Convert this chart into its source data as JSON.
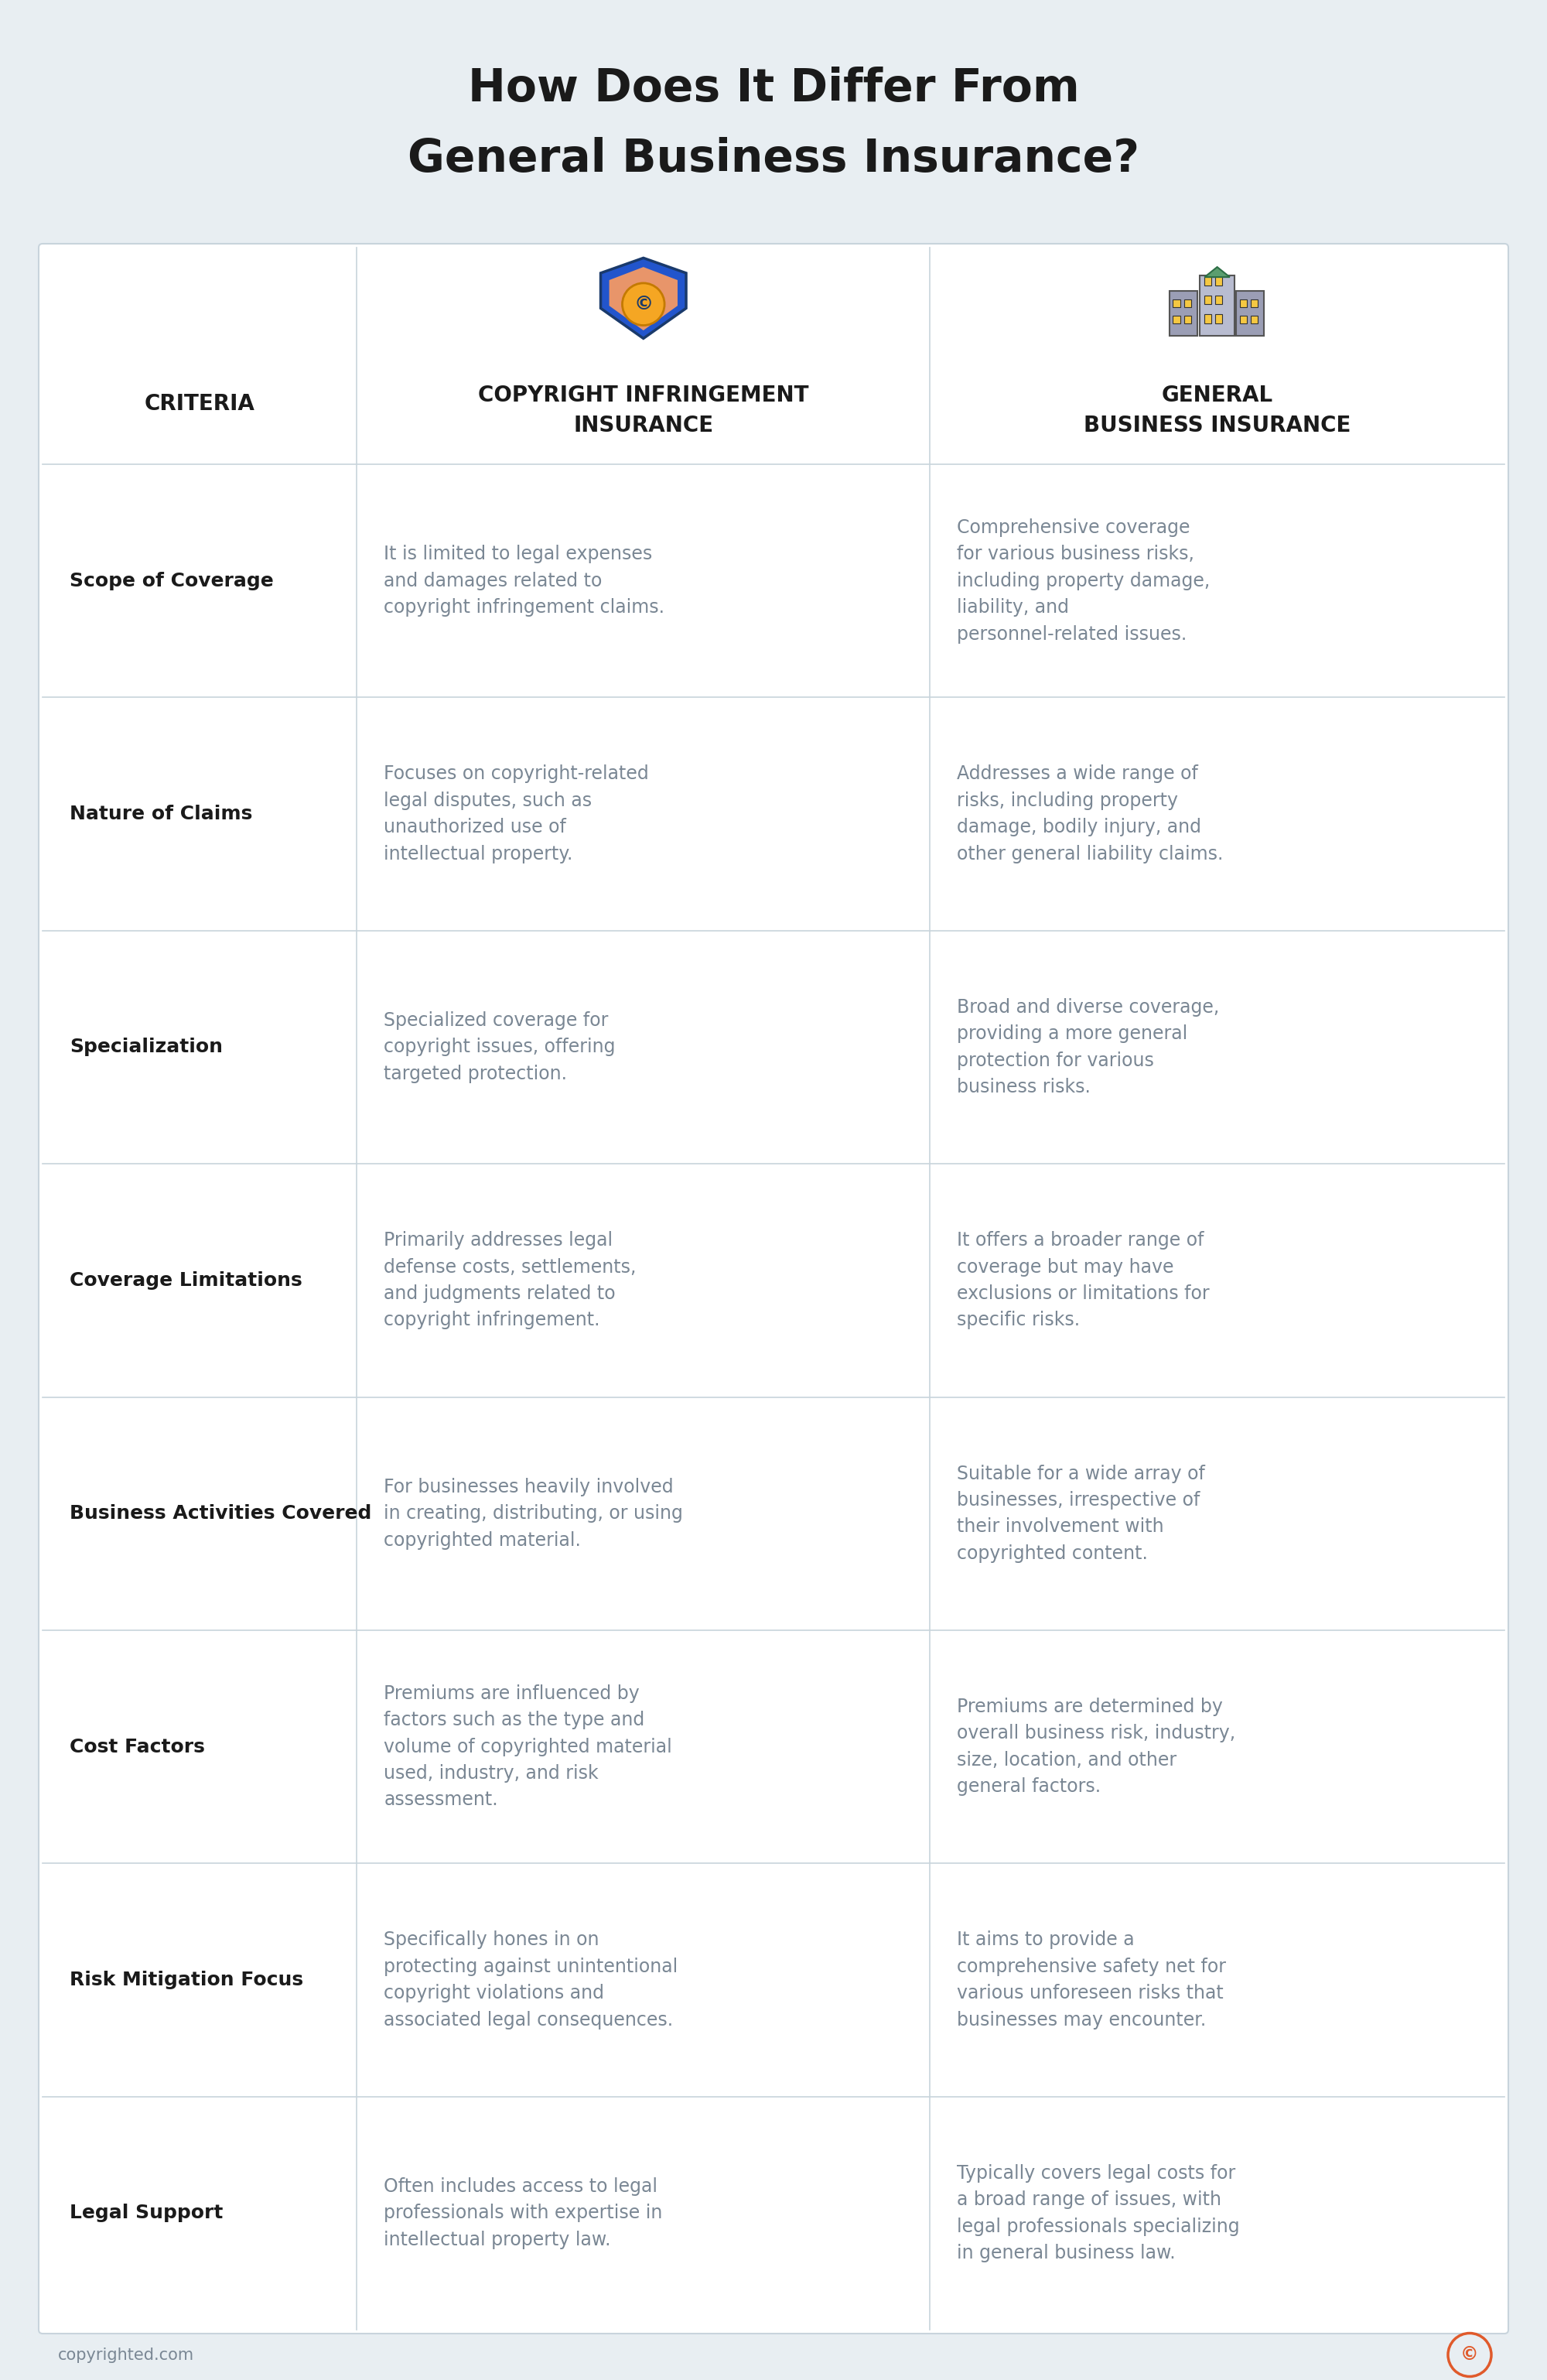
{
  "title_line1": "How Does It Differ From",
  "title_line2": "General Business Insurance?",
  "bg_color": "#e8eef2",
  "table_bg": "#ffffff",
  "border_color": "#c8d4dc",
  "criteria_header": "CRITERIA",
  "col1_header": "COPYRIGHT INFRINGEMENT\nINSURANCE",
  "col2_header": "GENERAL\nBUSINESS INSURANCE",
  "header_label_color": "#1a1a1a",
  "criteria_label_color": "#1a1a1a",
  "body_text_color": "#7a8794",
  "footer_text": "copyrighted.com",
  "footer_icon_color": "#e05a2b",
  "rows": [
    {
      "criteria": "Scope of Coverage",
      "col1": "It is limited to legal expenses\nand damages related to\ncopyright infringement claims.",
      "col2": "Comprehensive coverage\nfor various business risks,\nincluding property damage,\nliability, and\npersonnel-related issues."
    },
    {
      "criteria": "Nature of Claims",
      "col1": "Focuses on copyright-related\nlegal disputes, such as\nunauthorized use of\nintellectual property.",
      "col2": "Addresses a wide range of\nrisks, including property\ndamage, bodily injury, and\nother general liability claims."
    },
    {
      "criteria": "Specialization",
      "col1": "Specialized coverage for\ncopyright issues, offering\ntargeted protection.",
      "col2": "Broad and diverse coverage,\nproviding a more general\nprotection for various\nbusiness risks."
    },
    {
      "criteria": "Coverage Limitations",
      "col1": "Primarily addresses legal\ndefense costs, settlements,\nand judgments related to\ncopyright infringement.",
      "col2": "It offers a broader range of\ncoverage but may have\nexclusions or limitations for\nspecific risks."
    },
    {
      "criteria": "Business Activities Covered",
      "col1": "For businesses heavily involved\nin creating, distributing, or using\ncopyrighted material.",
      "col2": "Suitable for a wide array of\nbusinesses, irrespective of\ntheir involvement with\ncopyrighted content."
    },
    {
      "criteria": "Cost Factors",
      "col1": "Premiums are influenced by\nfactors such as the type and\nvolume of copyrighted material\nused, industry, and risk\nassessment.",
      "col2": "Premiums are determined by\noverall business risk, industry,\nsize, location, and other\ngeneral factors."
    },
    {
      "criteria": "Risk Mitigation Focus",
      "col1": "Specifically hones in on\nprotecting against unintentional\ncopyright violations and\nassociated legal consequences.",
      "col2": "It aims to provide a\ncomprehensive safety net for\nvarious unforeseen risks that\nbusinesses may encounter."
    },
    {
      "criteria": "Legal Support",
      "col1": "Often includes access to legal\nprofessionals with expertise in\nintellectual property law.",
      "col2": "Typically covers legal costs for\na broad range of issues, with\nlegal professionals specializing\nin general business law."
    }
  ],
  "title_fontsize": 42,
  "header_fontsize": 20,
  "criteria_label_fontsize": 18,
  "body_fontsize": 17,
  "footer_fontsize": 15
}
